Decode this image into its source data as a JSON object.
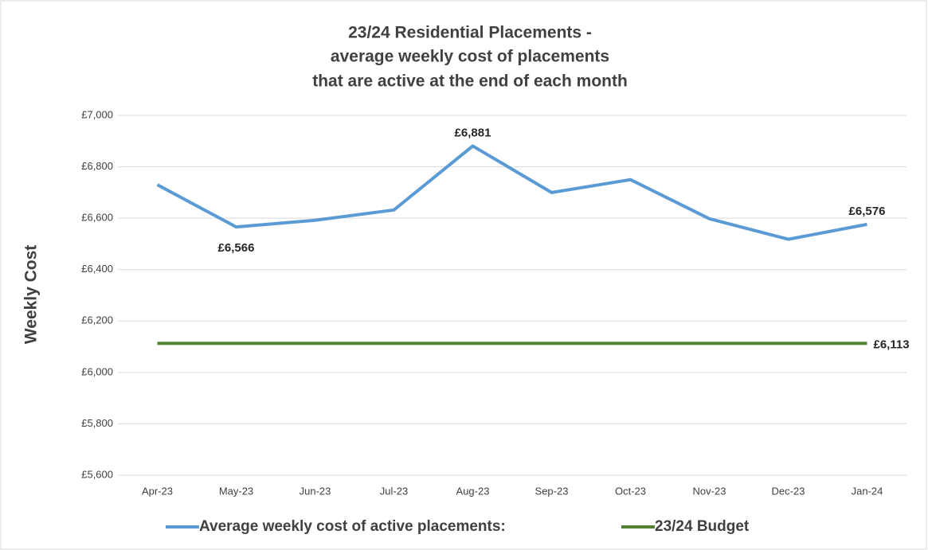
{
  "chart_data": {
    "type": "line",
    "title": [
      "23/24 Residential Placements -",
      "average weekly cost of placements",
      "that are active at the end of each month"
    ],
    "y_label": "Weekly Cost",
    "categories": [
      "Apr-23",
      "May-23",
      "Jun-23",
      "Jul-23",
      "Aug-23",
      "Sep-23",
      "Oct-23",
      "Nov-23",
      "Dec-23",
      "Jan-24"
    ],
    "series": [
      {
        "name": "Average weekly cost of active placements:",
        "color": "#5b9bd5",
        "values": [
          6730,
          6566,
          6592,
          6632,
          6881,
          6700,
          6750,
          6598,
          6518,
          6576
        ],
        "value_labels": [
          null,
          "£6,566",
          null,
          null,
          "£6,881",
          null,
          null,
          null,
          null,
          "£6,576"
        ]
      },
      {
        "name": "23/24 Budget",
        "color": "#548235",
        "values": [
          6113,
          6113,
          6113,
          6113,
          6113,
          6113,
          6113,
          6113,
          6113,
          6113
        ],
        "value_labels": [
          null,
          null,
          null,
          null,
          null,
          null,
          null,
          null,
          null,
          "£6,113"
        ]
      }
    ],
    "ylim": [
      5600,
      7000
    ],
    "yticks": [
      {
        "value": 5600,
        "label": "£5,600"
      },
      {
        "value": 5800,
        "label": "£5,800"
      },
      {
        "value": 6000,
        "label": "£6,000"
      },
      {
        "value": 6200,
        "label": "£6,200"
      },
      {
        "value": 6400,
        "label": "£6,400"
      },
      {
        "value": 6600,
        "label": "£6,600"
      },
      {
        "value": 6800,
        "label": "£6,800"
      },
      {
        "value": 7000,
        "label": "£7,000"
      }
    ],
    "grid": true,
    "legend": "bottom"
  }
}
